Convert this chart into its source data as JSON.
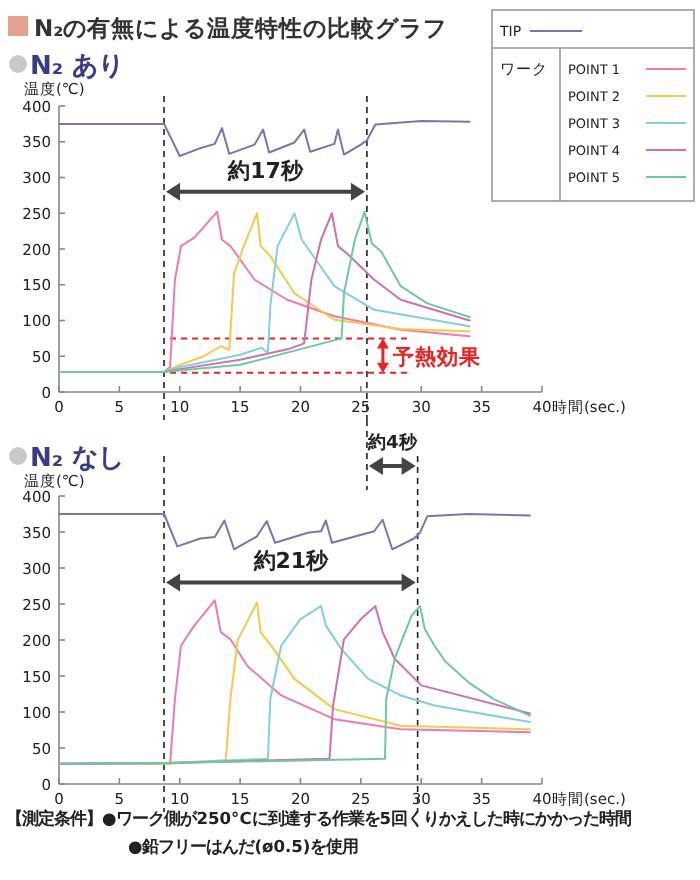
{
  "chart_data": [
    {
      "type": "line",
      "title": "N₂の有無による温度特性の比較グラフ",
      "subtitle": "N₂ あり",
      "ylabel": "温度(℃)",
      "xlabel": "時間(sec.)",
      "xlim": [
        0,
        40
      ],
      "ylim": [
        0,
        400
      ],
      "xticks": [
        0,
        5,
        10,
        15,
        20,
        25,
        30,
        35,
        40
      ],
      "yticks": [
        0,
        50,
        100,
        150,
        200,
        250,
        300,
        350,
        400
      ],
      "legend": "top right",
      "legend_title": "ワーク",
      "series": [
        {
          "name": "TIP",
          "color": "#7a75b0",
          "x": [
            0,
            8.7,
            10,
            11.7,
            12.9,
            13.5,
            14.1,
            16.2,
            16.9,
            17.4,
            19.5,
            20.3,
            20.8,
            22.8,
            23.1,
            23.6,
            25,
            25.5,
            26.2,
            30,
            34
          ],
          "values": [
            375,
            375,
            330,
            341,
            347,
            369,
            333,
            346,
            367,
            335,
            349,
            367,
            336,
            347,
            367,
            332,
            346,
            352,
            374,
            379,
            378
          ]
        },
        {
          "name": "POINT 1",
          "color": "#f07ab0",
          "x": [
            0,
            8.7,
            9.2,
            9.6,
            10.1,
            11.2,
            13.1,
            13.5,
            14.2,
            16.2,
            18.9,
            22.8,
            28.3,
            34
          ],
          "values": [
            28,
            28,
            35,
            157,
            204,
            216,
            252,
            213,
            204,
            157,
            129,
            106,
            87,
            78
          ]
        },
        {
          "name": "POINT 2",
          "color": "#f8c84a",
          "x": [
            0,
            8.7,
            10,
            12,
            13.4,
            14.1,
            14.5,
            15.3,
            16.4,
            16.7,
            17.5,
            19.5,
            22.8,
            28.3,
            34
          ],
          "values": [
            28,
            28,
            38,
            50,
            64,
            59,
            166,
            204,
            250,
            204,
            190,
            138,
            101,
            88,
            85
          ]
        },
        {
          "name": "POINT 3",
          "color": "#80d0e0",
          "x": [
            0,
            8.7,
            10,
            13,
            15,
            16.8,
            17.3,
            17.5,
            18.1,
            19.5,
            20.1,
            20.9,
            22.8,
            26.1,
            34
          ],
          "values": [
            28,
            28,
            35,
            45,
            52,
            62,
            54,
            120,
            204,
            250,
            213,
            194,
            148,
            115,
            92
          ]
        },
        {
          "name": "POINT 4",
          "color": "#d070b0",
          "x": [
            0,
            8.7,
            10,
            15,
            19,
            20.3,
            20.9,
            21.7,
            22.6,
            23.1,
            23.9,
            26.1,
            28.3,
            34
          ],
          "values": [
            28,
            28,
            32,
            45,
            60,
            68,
            157,
            213,
            250,
            204,
            193,
            157,
            129,
            100
          ]
        },
        {
          "name": "POINT 5",
          "color": "#70c8a0",
          "x": [
            0,
            8.7,
            10,
            15,
            20,
            23.4,
            23.6,
            24.5,
            25.3,
            25.9,
            26.7,
            28.3,
            30.5,
            34
          ],
          "values": [
            28,
            28,
            30,
            38,
            60,
            75,
            138,
            213,
            252,
            208,
            196,
            148,
            124,
            105
          ]
        }
      ],
      "ref_lines": [
        {
          "axis": "x",
          "value": 8.7,
          "color": "#222222",
          "line_style": "dashed"
        },
        {
          "axis": "x",
          "value": 25.5,
          "color": "#222222",
          "line_style": "dashed"
        },
        {
          "axis": "y",
          "value": 75,
          "color": "#ee2222",
          "line_style": "dashed"
        },
        {
          "axis": "y",
          "value": 27,
          "color": "#ee2222",
          "line_style": "dashed"
        }
      ],
      "annotations": [
        "約17秒",
        "予熱効果"
      ]
    },
    {
      "type": "line",
      "subtitle": "N₂ なし",
      "ylabel": "温度(℃)",
      "xlabel": "時間(sec.)",
      "xlim": [
        0,
        40
      ],
      "ylim": [
        0,
        400
      ],
      "xticks": [
        0,
        5,
        10,
        15,
        20,
        25,
        30,
        35,
        40
      ],
      "yticks": [
        0,
        50,
        100,
        150,
        200,
        250,
        300,
        350,
        400
      ],
      "series": [
        {
          "color": "#7a75b0",
          "x": [
            0,
            8.7,
            9.8,
            11.7,
            12.9,
            13.7,
            14.5,
            16.4,
            17.2,
            17.9,
            20.6,
            21.7,
            22.1,
            22.6,
            26.1,
            26.8,
            27.6,
            29.4,
            29.9,
            30.5,
            33.9,
            39
          ],
          "values": [
            375,
            375,
            330,
            341,
            343,
            366,
            326,
            344,
            365,
            335,
            349,
            351,
            366,
            335,
            351,
            367,
            326,
            341,
            349,
            372,
            375,
            373
          ]
        },
        {
          "color": "#f07ab0",
          "x": [
            0,
            9.2,
            9.6,
            10.1,
            11.2,
            12.9,
            13.4,
            14.2,
            15.6,
            18.4,
            22.8,
            28.3,
            39
          ],
          "values": [
            28,
            28,
            118,
            192,
            220,
            255,
            211,
            201,
            164,
            123,
            90,
            76,
            72
          ]
        },
        {
          "color": "#f8c84a",
          "x": [
            0,
            9,
            13.8,
            14.2,
            14.8,
            16.4,
            16.7,
            17.8,
            19.5,
            22.8,
            28.3,
            39
          ],
          "values": [
            28,
            28,
            33,
            118,
            200,
            252,
            211,
            187,
            146,
            104,
            81,
            76
          ]
        },
        {
          "color": "#80d0e0",
          "x": [
            0,
            9,
            17.3,
            17.5,
            18.4,
            20,
            21.7,
            22.1,
            23.4,
            25.6,
            28.3,
            31.1,
            39
          ],
          "values": [
            28,
            29,
            35,
            118,
            192,
            229,
            247,
            220,
            187,
            146,
            123,
            109,
            86
          ]
        },
        {
          "color": "#d070b0",
          "x": [
            0,
            9,
            22.4,
            22.7,
            23.6,
            25,
            26.2,
            26.8,
            27.8,
            30,
            39
          ],
          "values": [
            28,
            29,
            35,
            109,
            201,
            229,
            247,
            211,
            174,
            137,
            98
          ]
        },
        {
          "color": "#70c8a0",
          "x": [
            0,
            9,
            27,
            27.1,
            27.8,
            29.2,
            29.9,
            30.3,
            31.1,
            32,
            34,
            36,
            39
          ],
          "values": [
            28,
            29,
            35,
            118,
            174,
            234,
            247,
            215,
            192,
            170,
            140,
            118,
            95
          ]
        }
      ],
      "ref_lines": [
        {
          "axis": "x",
          "value": 8.7,
          "color": "#222222",
          "line_style": "dashed"
        },
        {
          "axis": "x",
          "value": 29.7,
          "color": "#222222",
          "line_style": "dashed"
        }
      ],
      "annotations": [
        "約21秒",
        "約4秒",
        "【測定条件】●ワーク側が250°Cに到達する作業を5回くりかえした時にかかった時間",
        "●鉛フリーはんだ(ø0.5)を使用"
      ]
    }
  ]
}
